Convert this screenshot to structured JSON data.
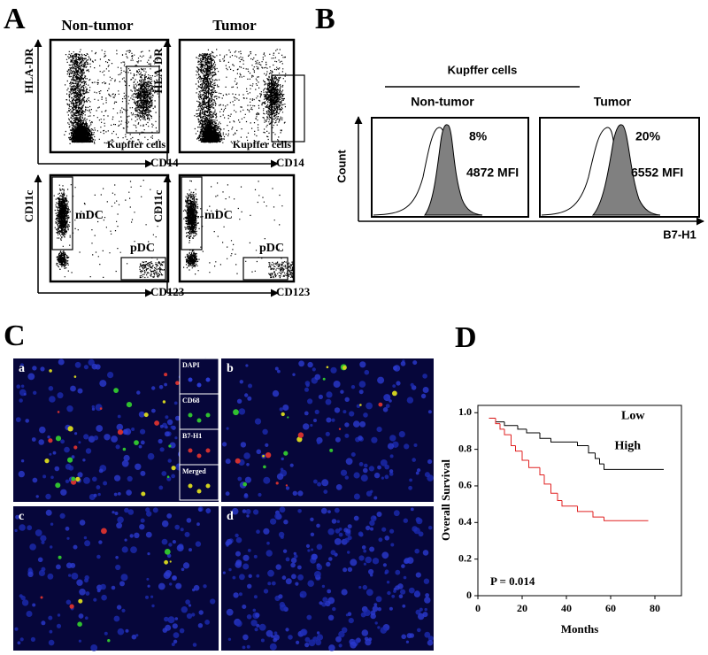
{
  "panels": {
    "A": {
      "letter": "A",
      "columns": [
        "Non-tumor",
        "Tumor"
      ],
      "plots": [
        {
          "y_label": "HLA-DR",
          "x_label": "CD14",
          "gate": "Kupffer cells"
        },
        {
          "y_label": "HLA-DR",
          "x_label": "CD14",
          "gate": "Kupffer cells"
        },
        {
          "y_label": "CD11c",
          "x_label": "CD123",
          "gate_1": "mDC",
          "gate_2": "pDC"
        },
        {
          "y_label": "CD11c",
          "x_label": "CD123",
          "gate_1": "mDC",
          "gate_2": "pDC"
        }
      ]
    },
    "B": {
      "letter": "B",
      "title": "Kupffer cells",
      "columns": [
        "Non-tumor",
        "Tumor"
      ],
      "y_label": "Count",
      "x_label": "B7-H1",
      "histograms": [
        {
          "percent": "8%",
          "mfi": "4872 MFI"
        },
        {
          "percent": "20%",
          "mfi": "6552 MFI"
        }
      ]
    },
    "C": {
      "letter": "C",
      "images": [
        "a",
        "b",
        "c",
        "d"
      ],
      "channels": [
        "DAPI",
        "CD68",
        "B7-H1",
        "Merged"
      ]
    },
    "D": {
      "letter": "D"
    }
  },
  "chart_data": {
    "type": "step",
    "x_label": "Months",
    "y_label": "Overall Survival",
    "annotation": "P = 0.014",
    "xlim": [
      0,
      92
    ],
    "ylim": [
      0,
      1.04
    ],
    "xticks": [
      0,
      20,
      40,
      60,
      80
    ],
    "yticks": [
      0,
      0.2,
      0.4,
      0.6,
      0.8,
      {
        "value": 1,
        "label": "1.0"
      }
    ],
    "series": [
      {
        "name": "Low",
        "color": "#000000",
        "x": [
          5,
          8,
          12,
          18,
          22,
          28,
          33,
          45,
          50,
          53,
          55,
          57,
          84
        ],
        "values": [
          0.97,
          0.95,
          0.93,
          0.91,
          0.89,
          0.86,
          0.84,
          0.82,
          0.78,
          0.75,
          0.72,
          0.69,
          0.69
        ]
      },
      {
        "name": "High",
        "color": "#e02020",
        "x": [
          5,
          8,
          10,
          12,
          15,
          17,
          20,
          23,
          28,
          30,
          33,
          36,
          38,
          45,
          52,
          57,
          77
        ],
        "values": [
          0.97,
          0.94,
          0.91,
          0.88,
          0.82,
          0.79,
          0.74,
          0.7,
          0.66,
          0.61,
          0.56,
          0.52,
          0.49,
          0.46,
          0.43,
          0.41,
          0.41
        ]
      }
    ]
  }
}
